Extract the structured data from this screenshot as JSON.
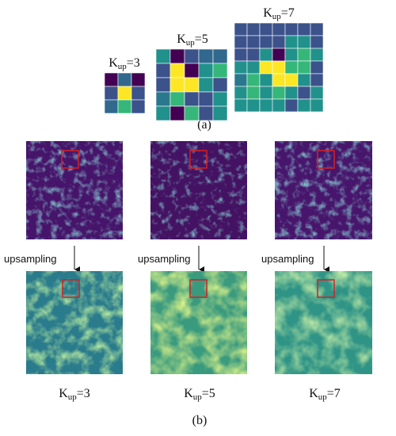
{
  "panel_a": {
    "kernels": [
      {
        "label": {
          "k": "K",
          "sub": "up",
          "eq": "=3"
        }
      },
      {
        "label": {
          "k": "K",
          "sub": "up",
          "eq": "=5"
        }
      },
      {
        "label": {
          "k": "K",
          "sub": "up",
          "eq": "=7"
        }
      }
    ],
    "caption": "(a)"
  },
  "panel_b": {
    "columns": [
      {
        "arrow_label": "upsampling",
        "label": {
          "k": "K",
          "sub": "up",
          "eq": "=3"
        }
      },
      {
        "arrow_label": "upsampling",
        "label": {
          "k": "K",
          "sub": "up",
          "eq": "=5"
        }
      },
      {
        "arrow_label": "upsampling",
        "label": {
          "k": "K",
          "sub": "up",
          "eq": "=7"
        }
      }
    ],
    "caption": "(b)"
  }
}
